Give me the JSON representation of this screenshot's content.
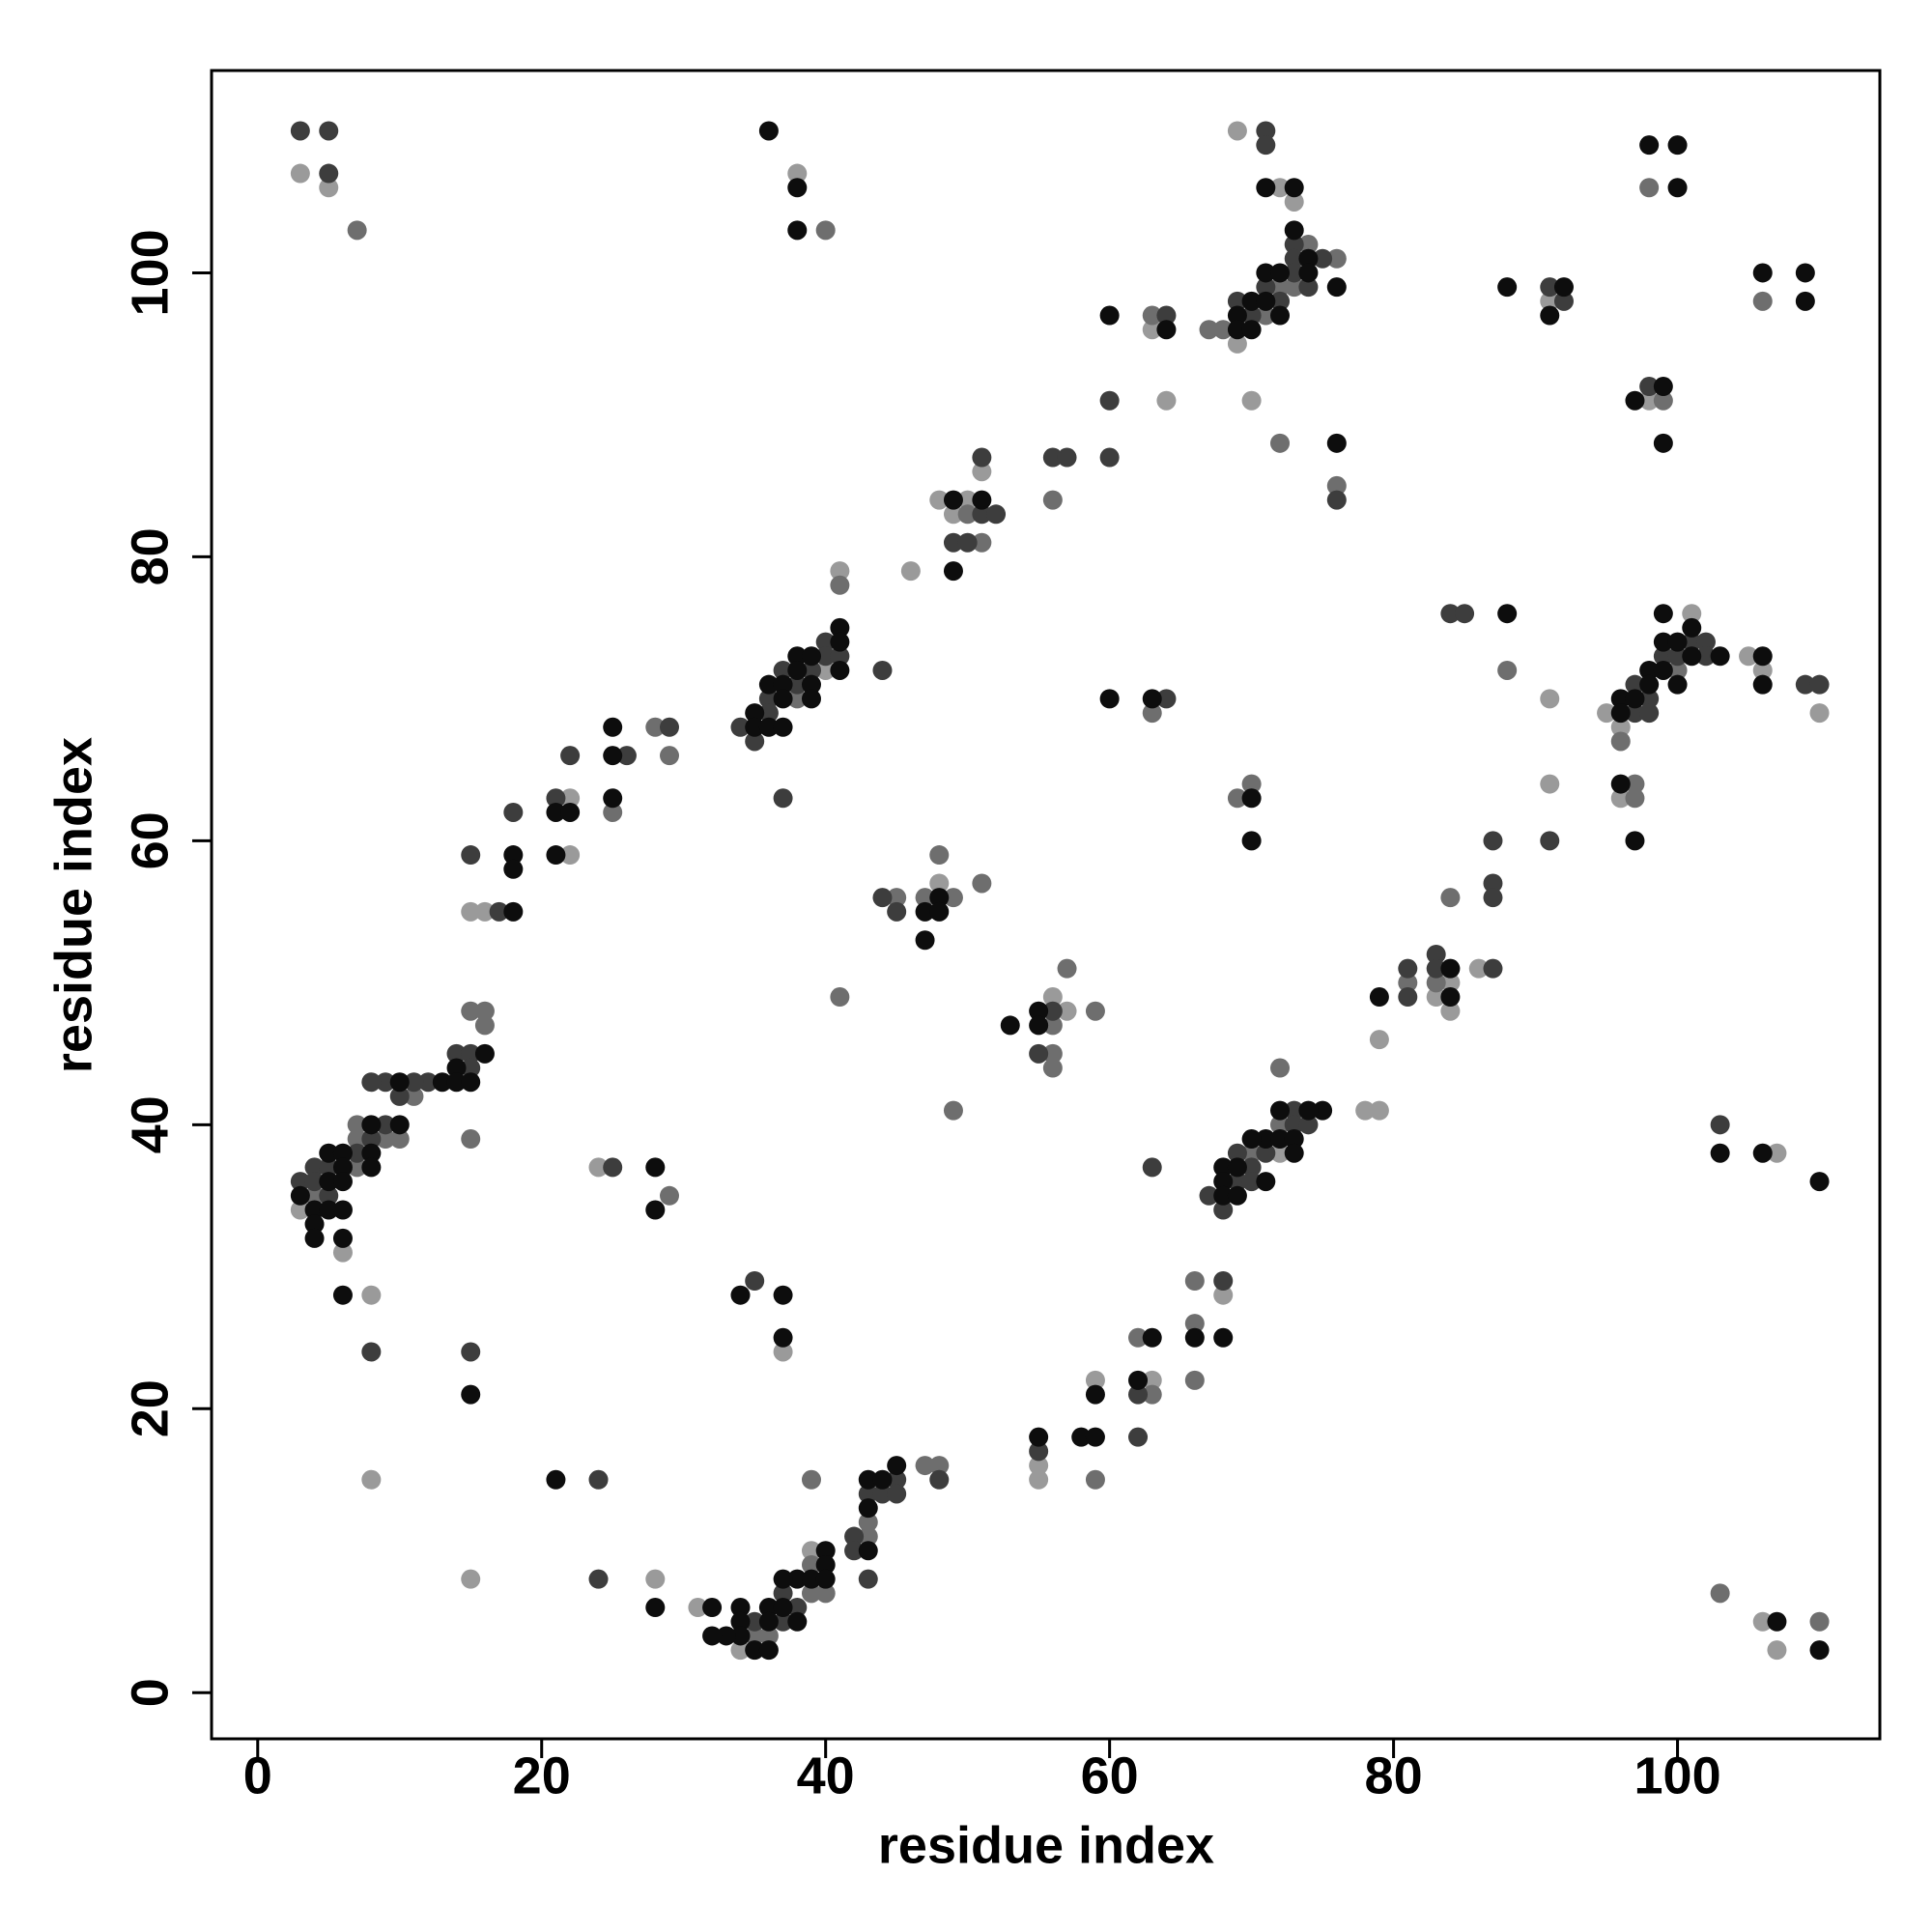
{
  "chart_data": {
    "type": "scatter",
    "xlabel": "residue index",
    "ylabel": "residue index",
    "xlim": [
      -3.25,
      114.25
    ],
    "ylim": [
      -3.25,
      114.25
    ],
    "xticks": [
      0,
      20,
      40,
      60,
      80,
      100
    ],
    "yticks": [
      0,
      20,
      40,
      60,
      80,
      100
    ],
    "series": [
      {
        "color": "#9a9a9a",
        "x": [
          3,
          5,
          38,
          69,
          72,
          73,
          69,
          63,
          64,
          70,
          91,
          98,
          51,
          48,
          50,
          49,
          46,
          41,
          40,
          22,
          22,
          15,
          16,
          3,
          6,
          8,
          8,
          15,
          24,
          48,
          57,
          56,
          91,
          91,
          95,
          96,
          96,
          101,
          105,
          106,
          110,
          107,
          106,
          107,
          72,
          78,
          79,
          79,
          84,
          83,
          84,
          86,
          68,
          63,
          59,
          55,
          55,
          39,
          34,
          31,
          37,
          28
        ],
        "values": [
          107,
          106,
          107,
          110,
          106,
          105,
          95,
          96,
          91,
          91,
          98,
          91,
          86,
          84,
          84,
          83,
          79,
          79,
          72,
          63,
          59,
          55,
          55,
          34,
          31,
          28,
          15,
          8,
          37,
          57,
          48,
          49,
          70,
          64,
          69,
          68,
          63,
          76,
          73,
          72,
          69,
          38,
          5,
          3,
          38,
          41,
          41,
          46,
          50,
          49,
          48,
          51,
          28,
          22,
          22,
          16,
          15,
          10,
          3,
          6,
          24,
          8
        ]
      },
      {
        "color": "#6e6e6e",
        "x": [
          7,
          40,
          74,
          76,
          73,
          72,
          67,
          68,
          63,
          71,
          72,
          76,
          99,
          98,
          106,
          56,
          50,
          51,
          41,
          28,
          29,
          15,
          16,
          16,
          11,
          15,
          7,
          7,
          9,
          10,
          7,
          4,
          29,
          45,
          47,
          49,
          48,
          51,
          41,
          57,
          56,
          56,
          56,
          59,
          49,
          63,
          69,
          70,
          88,
          96,
          100,
          97,
          97,
          103,
          110,
          72,
          70,
          72,
          81,
          83,
          84,
          66,
          66,
          66,
          62,
          63,
          59,
          47,
          48,
          43,
          43,
          39,
          39,
          39,
          40,
          35,
          36,
          25,
          38
        ],
        "values": [
          103,
          103,
          102,
          101,
          99,
          99,
          96,
          96,
          97,
          97,
          88,
          85,
          91,
          106,
          98,
          84,
          83,
          81,
          78,
          68,
          66,
          48,
          48,
          47,
          42,
          39,
          40,
          39,
          39,
          39,
          37,
          35,
          35,
          56,
          56,
          56,
          59,
          57,
          49,
          51,
          47,
          45,
          44,
          48,
          41,
          69,
          63,
          64,
          72,
          67,
          72,
          64,
          63,
          7,
          5,
          40,
          38,
          44,
          50,
          50,
          56,
          29,
          26,
          22,
          25,
          21,
          15,
          16,
          16,
          12,
          11,
          15,
          9,
          7,
          7,
          4,
          4,
          62,
          70
        ]
      },
      {
        "color": "#3d3d3d",
        "x": [
          3,
          5,
          5,
          71,
          71,
          73,
          75,
          73,
          73,
          71,
          74,
          69,
          72,
          70,
          64,
          60,
          60,
          76,
          91,
          92,
          98,
          56,
          57,
          51,
          51,
          52,
          49,
          50,
          40,
          40,
          41,
          37,
          39,
          38,
          36,
          34,
          35,
          36,
          37,
          44,
          29,
          26,
          22,
          21,
          18,
          15,
          17,
          14,
          15,
          15,
          12,
          11,
          9,
          8,
          10,
          9,
          8,
          7,
          4,
          5,
          3,
          4,
          5,
          8,
          15,
          25,
          44,
          45,
          56,
          55,
          64,
          84,
          85,
          91,
          97,
          97,
          98,
          98,
          99,
          100,
          101,
          102,
          102,
          109,
          110,
          103,
          73,
          73,
          74,
          69,
          71,
          70,
          69,
          70,
          67,
          68,
          63,
          81,
          81,
          83,
          83,
          87,
          87,
          87,
          87,
          68,
          62,
          62,
          55,
          48,
          45,
          43,
          44,
          45,
          42,
          42,
          43,
          37,
          38,
          35,
          37,
          35,
          24,
          24
        ],
        "values": [
          110,
          110,
          107,
          110,
          109,
          102,
          101,
          101,
          100,
          99,
          99,
          98,
          98,
          97,
          97,
          91,
          87,
          84,
          99,
          98,
          92,
          87,
          87,
          87,
          83,
          83,
          81,
          81,
          74,
          73,
          73,
          72,
          72,
          71,
          70,
          68,
          67,
          69,
          63,
          72,
          68,
          66,
          66,
          63,
          62,
          59,
          55,
          45,
          45,
          44,
          43,
          43,
          43,
          43,
          42,
          40,
          39,
          38,
          37,
          37,
          36,
          36,
          35,
          24,
          24,
          37,
          56,
          55,
          48,
          45,
          70,
          76,
          76,
          60,
          71,
          69,
          70,
          69,
          73,
          73,
          74,
          74,
          73,
          71,
          71,
          40,
          41,
          40,
          40,
          38,
          38,
          37,
          36,
          36,
          35,
          34,
          37,
          51,
          49,
          52,
          51,
          51,
          57,
          56,
          60,
          29,
          21,
          18,
          17,
          15,
          15,
          14,
          14,
          14,
          11,
          10,
          8,
          7,
          6,
          5,
          5,
          29,
          8,
          15
        ]
      },
      {
        "color": "#0d0d0d",
        "x": [
          36,
          38,
          38,
          71,
          73,
          73,
          98,
          100,
          100,
          74,
          71,
          72,
          74,
          76,
          70,
          71,
          69,
          72,
          69,
          70,
          64,
          60,
          76,
          88,
          92,
          91,
          99,
          97,
          99,
          106,
          109,
          109,
          49,
          51,
          49,
          41,
          41,
          38,
          39,
          38,
          41,
          36,
          37,
          39,
          35,
          37,
          39,
          35,
          36,
          37,
          25,
          25,
          25,
          21,
          22,
          21,
          18,
          18,
          18,
          16,
          14,
          13,
          14,
          15,
          10,
          8,
          10,
          5,
          6,
          8,
          6,
          8,
          5,
          6,
          3,
          4,
          5,
          6,
          4,
          4,
          6,
          6,
          15,
          28,
          28,
          48,
          47,
          48,
          47,
          53,
          55,
          55,
          60,
          63,
          70,
          70,
          88,
          96,
          96,
          97,
          98,
          98,
          99,
          99,
          99,
          100,
          100,
          101,
          101,
          103,
          96,
          97,
          106,
          106,
          103,
          106,
          110,
          107,
          110,
          75,
          74,
          72,
          71,
          72,
          73,
          70,
          73,
          68,
          69,
          68,
          71,
          68,
          69,
          79,
          84,
          84,
          66,
          68,
          63,
          62,
          59,
          58,
          59,
          55,
          45,
          43,
          44,
          43,
          43,
          40,
          40,
          38,
          39,
          40,
          37,
          36,
          37,
          34,
          36,
          38,
          34,
          34,
          33,
          32,
          35,
          36,
          32,
          34,
          37,
          37,
          28,
          21
        ],
        "values": [
          110,
          106,
          103,
          106,
          106,
          103,
          109,
          109,
          106,
          101,
          100,
          100,
          100,
          99,
          98,
          98,
          97,
          97,
          96,
          96,
          96,
          97,
          88,
          99,
          99,
          97,
          92,
          91,
          88,
          100,
          100,
          98,
          84,
          84,
          79,
          75,
          74,
          73,
          73,
          72,
          72,
          71,
          71,
          71,
          69,
          70,
          70,
          68,
          68,
          68,
          68,
          66,
          63,
          62,
          62,
          59,
          59,
          58,
          55,
          45,
          44,
          43,
          43,
          43,
          43,
          40,
          40,
          38,
          38,
          38,
          37,
          37,
          36,
          36,
          35,
          34,
          34,
          34,
          33,
          32,
          32,
          28,
          21,
          37,
          34,
          56,
          55,
          55,
          53,
          47,
          48,
          47,
          70,
          70,
          63,
          60,
          76,
          70,
          69,
          70,
          72,
          71,
          76,
          74,
          72,
          74,
          71,
          75,
          73,
          73,
          64,
          60,
          73,
          71,
          38,
          38,
          36,
          5,
          3,
          41,
          41,
          41,
          39,
          39,
          39,
          39,
          38,
          37,
          37,
          36,
          36,
          35,
          35,
          49,
          51,
          49,
          25,
          25,
          25,
          22,
          21,
          18,
          18,
          18,
          16,
          15,
          15,
          13,
          10,
          10,
          9,
          8,
          8,
          8,
          8,
          6,
          6,
          6,
          5,
          5,
          5,
          4,
          4,
          4,
          3,
          3,
          6,
          28,
          28,
          25,
          6,
          15
        ]
      }
    ]
  }
}
